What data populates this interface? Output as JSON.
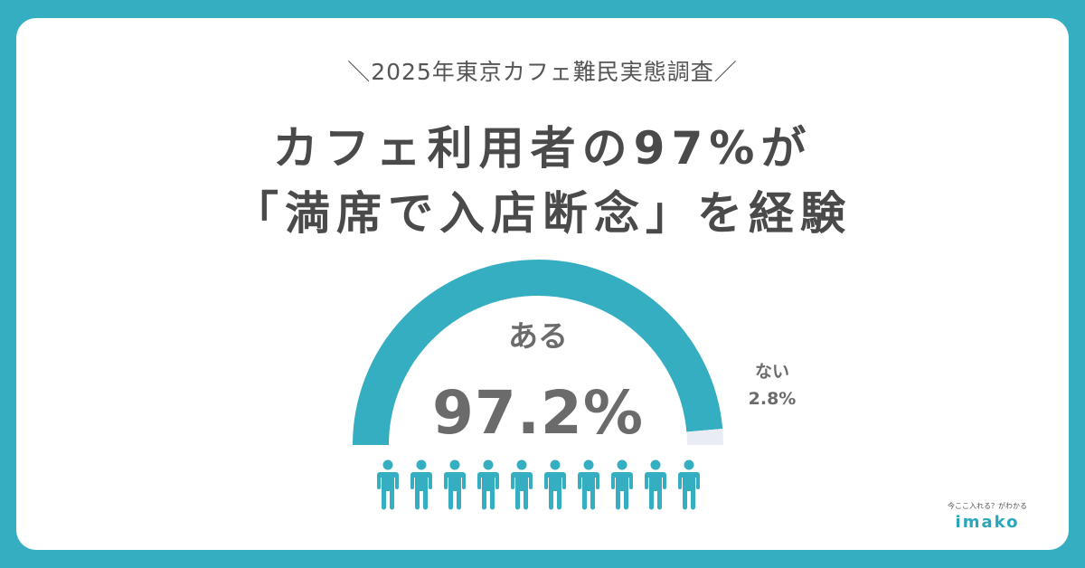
{
  "survey_title": "＼2025年東京カフェ難民実態調査／",
  "headline": {
    "line1": "カフェ利用者の97%が",
    "line2": "「満席で入店断念」を経験"
  },
  "chart_data": {
    "type": "pie",
    "style": "half-donut-gauge",
    "categories": [
      "ある",
      "ない"
    ],
    "values": [
      97.2,
      2.8
    ],
    "value_labels": [
      "97.2%",
      "2.8%"
    ],
    "colors": [
      "#36aec2",
      "#e9edf3"
    ]
  },
  "people_icons": {
    "count": 10,
    "icon": "person-icon",
    "color": "#36aec2"
  },
  "brand": {
    "tagline": "今ここ入れる？がわかる",
    "name": "imako"
  },
  "colors": {
    "background": "#36aec2",
    "card": "#ffffff",
    "text": "#4a4a4a"
  }
}
